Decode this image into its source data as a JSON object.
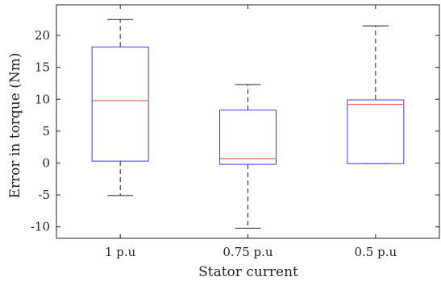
{
  "chart_data": {
    "type": "box",
    "xlabel": "Stator current",
    "ylabel": "Error in torque (Nm)",
    "ylim": [
      -11.8,
      24.8
    ],
    "yticks": [
      -10,
      -5,
      0,
      5,
      10,
      15,
      20
    ],
    "ytick_labels": [
      "-10",
      "-5",
      "0",
      "5",
      "10",
      "15",
      "20"
    ],
    "grid": false,
    "categories": [
      "1 p.u",
      "0.75 p.u",
      "0.5 p.u"
    ],
    "boxes": [
      {
        "category": "1 p.u",
        "min": -5.1,
        "q1": 0.3,
        "median": 9.8,
        "q3": 18.2,
        "max": 22.5
      },
      {
        "category": "0.75 p.u",
        "min": -10.2,
        "q1": -0.2,
        "median": 0.7,
        "q3": 8.3,
        "max": 12.3
      },
      {
        "category": "0.5 p.u",
        "min": -0.1,
        "q1": -0.1,
        "median": 9.2,
        "q3": 9.9,
        "max": 21.5
      }
    ],
    "colors": {
      "box": "#3a3aff",
      "median": "#ff3b3b",
      "whisker": "#222222",
      "axes": "#222222"
    }
  }
}
